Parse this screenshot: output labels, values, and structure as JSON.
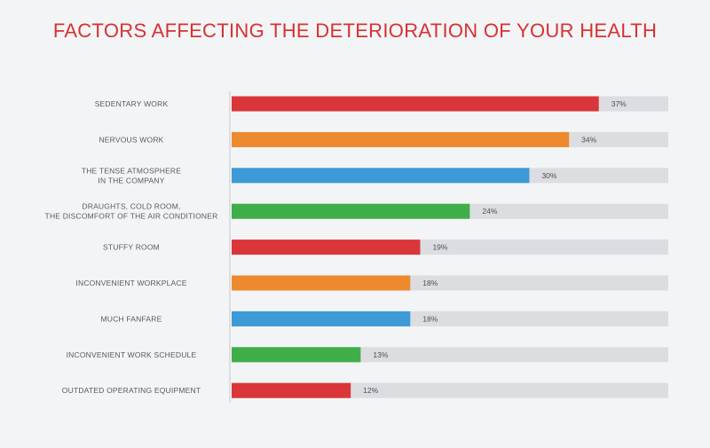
{
  "chart_data": {
    "type": "bar",
    "orientation": "horizontal",
    "title": "FACTORS AFFECTING THE DETERIORATION OF YOUR HEALTH",
    "categories": [
      [
        "SEDENTARY WORK"
      ],
      [
        "NERVOUS WORK"
      ],
      [
        "THE TENSE ATMOSPHERE",
        "IN THE COMPANY"
      ],
      [
        "DRAUGHTS, COLD ROOM,",
        "THE DISCOMFORT OF THE AIR CONDITIONER"
      ],
      [
        "STUFFY ROOM"
      ],
      [
        "INCONVENIENT WORKPLACE"
      ],
      [
        "MUCH FANFARE"
      ],
      [
        "INCONVENIENT WORK SCHEDULE"
      ],
      [
        "OUTDATED OPERATING EQUIPMENT"
      ]
    ],
    "values": [
      37,
      34,
      30,
      24,
      19,
      18,
      18,
      13,
      12
    ],
    "value_labels": [
      "37%",
      "34%",
      "30%",
      "24%",
      "19%",
      "18%",
      "18%",
      "13%",
      "12%"
    ],
    "colors": [
      "#d9363a",
      "#ec8a2d",
      "#3c9ad6",
      "#3fae49",
      "#d9363a",
      "#ec8a2d",
      "#3c9ad6",
      "#3fae49",
      "#d9363a"
    ],
    "track_color": "#dcdde0",
    "xlim": [
      0,
      44
    ],
    "grid": false,
    "legend": "none"
  }
}
